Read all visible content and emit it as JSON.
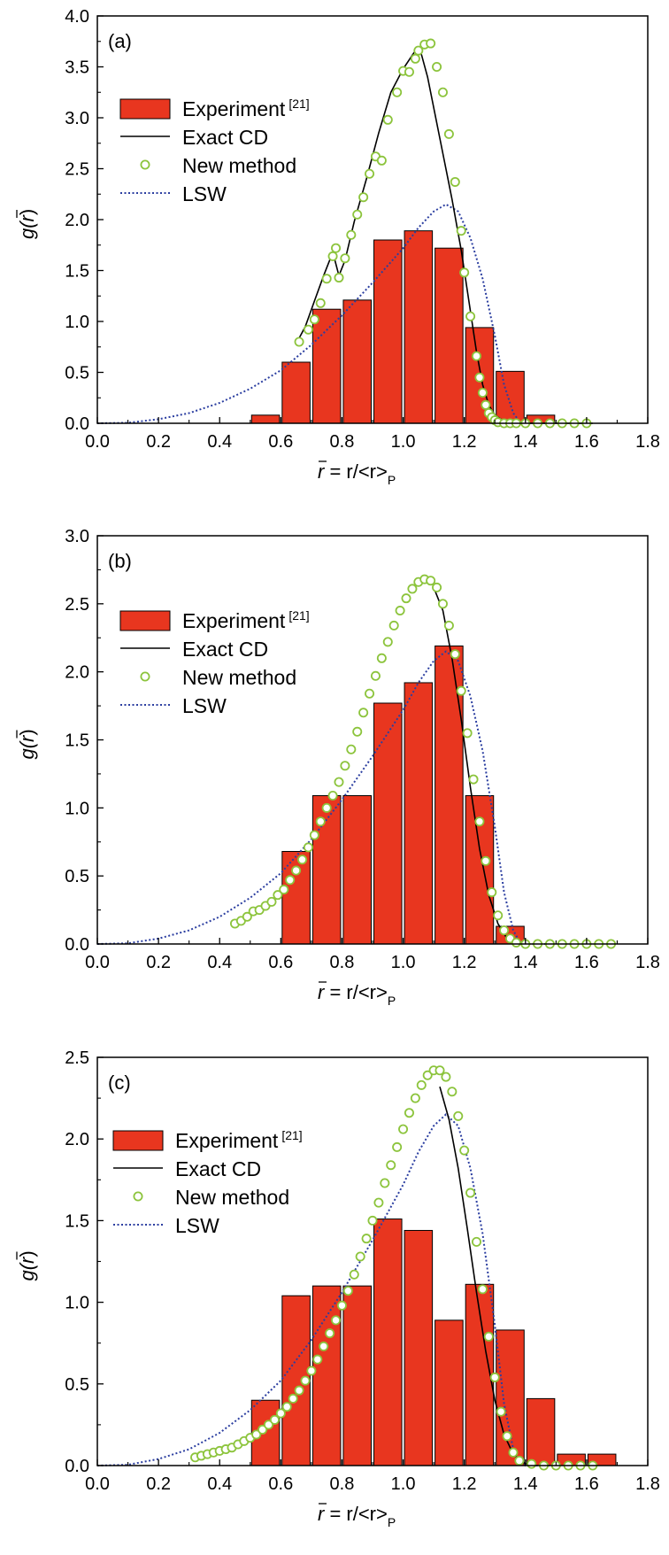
{
  "chart_data": [
    {
      "type": "bar",
      "panel_label": "(a)",
      "xlabel": {
        "bar": "r",
        "rest": " = r/<r>",
        "sub": "P"
      },
      "ylabel": {
        "main": "g(",
        "bar": "r",
        "close": ")"
      },
      "xlim": [
        0.0,
        1.8
      ],
      "ylim": [
        0.0,
        4.0
      ],
      "xticks": [
        0.0,
        0.2,
        0.4,
        0.6,
        0.8,
        1.0,
        1.2,
        1.4,
        1.6,
        1.8
      ],
      "yticks": [
        0.0,
        0.5,
        1.0,
        1.5,
        2.0,
        2.5,
        3.0,
        3.5,
        4.0
      ],
      "grid": false,
      "legend_position": "upper-left",
      "series": [
        {
          "name": "Experiment",
          "ref": "[21]",
          "kind": "bar",
          "color": "#e8361f",
          "bar_width": 0.1,
          "x": [
            0.55,
            0.65,
            0.75,
            0.85,
            0.95,
            1.05,
            1.15,
            1.25,
            1.35,
            1.45
          ],
          "values": [
            0.08,
            0.6,
            1.12,
            1.21,
            1.8,
            1.89,
            1.72,
            0.94,
            0.51,
            0.08
          ]
        },
        {
          "name": "Exact CD",
          "kind": "line",
          "color": "#000000",
          "x": [
            0.65,
            0.68,
            0.71,
            0.74,
            0.77,
            0.79,
            0.81,
            0.84,
            0.88,
            0.92,
            0.96,
            1.0,
            1.04,
            1.06,
            1.08,
            1.12,
            1.16,
            1.19,
            1.22,
            1.24,
            1.26,
            1.28,
            1.3,
            1.33,
            1.36,
            1.42,
            1.52,
            1.62
          ],
          "values": [
            0.78,
            0.95,
            1.2,
            1.45,
            1.68,
            1.45,
            1.6,
            1.98,
            2.4,
            2.85,
            3.25,
            3.48,
            3.66,
            3.62,
            3.4,
            2.8,
            2.2,
            1.7,
            1.1,
            0.7,
            0.38,
            0.18,
            0.08,
            0.02,
            0.0,
            0.0,
            0.0,
            0.0
          ]
        },
        {
          "name": "New method",
          "kind": "scatter",
          "color": "#8cc43c",
          "x": [
            0.66,
            0.69,
            0.71,
            0.73,
            0.75,
            0.77,
            0.78,
            0.79,
            0.81,
            0.83,
            0.85,
            0.87,
            0.89,
            0.91,
            0.93,
            0.95,
            0.98,
            1.0,
            1.02,
            1.04,
            1.05,
            1.07,
            1.09,
            1.11,
            1.13,
            1.15,
            1.17,
            1.19,
            1.2,
            1.22,
            1.24,
            1.25,
            1.26,
            1.27,
            1.28,
            1.29,
            1.3,
            1.31,
            1.33,
            1.35,
            1.37,
            1.4,
            1.44,
            1.48,
            1.52,
            1.56,
            1.6
          ],
          "values": [
            0.8,
            0.92,
            1.02,
            1.18,
            1.42,
            1.64,
            1.72,
            1.43,
            1.62,
            1.85,
            2.05,
            2.22,
            2.45,
            2.62,
            2.58,
            2.98,
            3.25,
            3.46,
            3.45,
            3.58,
            3.66,
            3.72,
            3.73,
            3.5,
            3.25,
            2.84,
            2.37,
            1.89,
            1.48,
            1.05,
            0.66,
            0.45,
            0.3,
            0.18,
            0.1,
            0.06,
            0.03,
            0.01,
            0.0,
            0.0,
            0.0,
            0.0,
            0.0,
            0.0,
            0.0,
            0.0,
            0.0
          ]
        },
        {
          "name": "LSW",
          "kind": "dotted-line",
          "color": "#2b3ea0",
          "x": [
            0.0,
            0.1,
            0.2,
            0.3,
            0.4,
            0.5,
            0.6,
            0.7,
            0.8,
            0.9,
            1.0,
            1.05,
            1.1,
            1.14,
            1.18,
            1.22,
            1.26,
            1.3,
            1.33,
            1.36,
            1.38,
            1.4,
            1.5
          ],
          "values": [
            0.0,
            0.005,
            0.04,
            0.1,
            0.2,
            0.34,
            0.52,
            0.77,
            1.06,
            1.38,
            1.72,
            1.92,
            2.08,
            2.15,
            2.08,
            1.82,
            1.42,
            0.86,
            0.38,
            0.1,
            0.02,
            0.0,
            0.0
          ]
        }
      ]
    },
    {
      "type": "bar",
      "panel_label": "(b)",
      "xlabel": {
        "bar": "r",
        "rest": " = r/<r>",
        "sub": "P"
      },
      "ylabel": {
        "main": "g(",
        "bar": "r",
        "close": ")"
      },
      "xlim": [
        0.0,
        1.8
      ],
      "ylim": [
        0.0,
        3.0
      ],
      "xticks": [
        0.0,
        0.2,
        0.4,
        0.6,
        0.8,
        1.0,
        1.2,
        1.4,
        1.6,
        1.8
      ],
      "yticks": [
        0.0,
        0.5,
        1.0,
        1.5,
        2.0,
        2.5,
        3.0
      ],
      "grid": false,
      "legend_position": "upper-left",
      "series": [
        {
          "name": "Experiment",
          "ref": "[21]",
          "kind": "bar",
          "color": "#e8361f",
          "bar_width": 0.1,
          "x": [
            0.65,
            0.75,
            0.85,
            0.95,
            1.05,
            1.15,
            1.25,
            1.35
          ],
          "values": [
            0.68,
            1.09,
            1.09,
            1.77,
            1.92,
            2.19,
            1.09,
            0.13
          ]
        },
        {
          "name": "Exact CD",
          "kind": "line",
          "color": "#000000",
          "x": [
            1.1,
            1.13,
            1.16,
            1.19,
            1.22,
            1.25,
            1.28,
            1.31,
            1.34,
            1.37,
            1.4
          ],
          "values": [
            2.62,
            2.45,
            2.1,
            1.65,
            1.15,
            0.7,
            0.36,
            0.15,
            0.04,
            0.01,
            0.0
          ]
        },
        {
          "name": "New method",
          "kind": "scatter",
          "color": "#8cc43c",
          "x": [
            0.45,
            0.47,
            0.49,
            0.51,
            0.53,
            0.55,
            0.57,
            0.59,
            0.61,
            0.63,
            0.65,
            0.67,
            0.69,
            0.71,
            0.73,
            0.75,
            0.77,
            0.79,
            0.81,
            0.83,
            0.85,
            0.87,
            0.89,
            0.91,
            0.93,
            0.95,
            0.97,
            0.99,
            1.01,
            1.03,
            1.05,
            1.07,
            1.09,
            1.11,
            1.13,
            1.15,
            1.17,
            1.19,
            1.21,
            1.23,
            1.25,
            1.27,
            1.29,
            1.31,
            1.33,
            1.35,
            1.37,
            1.4,
            1.44,
            1.48,
            1.52,
            1.56,
            1.6,
            1.64,
            1.68
          ],
          "values": [
            0.15,
            0.17,
            0.2,
            0.24,
            0.25,
            0.28,
            0.31,
            0.36,
            0.4,
            0.47,
            0.54,
            0.62,
            0.71,
            0.8,
            0.9,
            1.0,
            1.09,
            1.19,
            1.31,
            1.43,
            1.56,
            1.7,
            1.84,
            1.97,
            2.1,
            2.22,
            2.34,
            2.45,
            2.54,
            2.61,
            2.66,
            2.68,
            2.67,
            2.62,
            2.5,
            2.34,
            2.13,
            1.86,
            1.55,
            1.21,
            0.9,
            0.61,
            0.38,
            0.21,
            0.1,
            0.04,
            0.01,
            0.0,
            0.0,
            0.0,
            0.0,
            0.0,
            0.0,
            0.0,
            0.0
          ]
        },
        {
          "name": "LSW",
          "kind": "dotted-line",
          "color": "#2b3ea0",
          "x": [
            0.0,
            0.1,
            0.2,
            0.3,
            0.4,
            0.5,
            0.6,
            0.7,
            0.8,
            0.9,
            1.0,
            1.05,
            1.1,
            1.14,
            1.18,
            1.22,
            1.26,
            1.3,
            1.33,
            1.36,
            1.38,
            1.4,
            1.5
          ],
          "values": [
            0.0,
            0.005,
            0.04,
            0.1,
            0.2,
            0.34,
            0.52,
            0.77,
            1.06,
            1.38,
            1.72,
            1.92,
            2.08,
            2.15,
            2.08,
            1.82,
            1.42,
            0.86,
            0.38,
            0.1,
            0.02,
            0.0,
            0.0
          ]
        }
      ]
    },
    {
      "type": "bar",
      "panel_label": "(c)",
      "xlabel": {
        "bar": "r",
        "rest": " = r/<r>",
        "sub": "P"
      },
      "ylabel": {
        "main": "g(",
        "bar": "r",
        "close": ")"
      },
      "xlim": [
        0.0,
        1.8
      ],
      "ylim": [
        0.0,
        2.5
      ],
      "xticks": [
        0.0,
        0.2,
        0.4,
        0.6,
        0.8,
        1.0,
        1.2,
        1.4,
        1.6,
        1.8
      ],
      "yticks": [
        0.0,
        0.5,
        1.0,
        1.5,
        2.0,
        2.5
      ],
      "grid": false,
      "legend_position": "upper-left",
      "series": [
        {
          "name": "Experiment",
          "ref": "[21]",
          "kind": "bar",
          "color": "#e8361f",
          "bar_width": 0.1,
          "x": [
            0.55,
            0.65,
            0.75,
            0.85,
            0.95,
            1.05,
            1.15,
            1.25,
            1.35,
            1.45,
            1.55,
            1.65
          ],
          "values": [
            0.4,
            1.04,
            1.1,
            1.1,
            1.51,
            1.44,
            0.89,
            1.11,
            0.83,
            0.41,
            0.07,
            0.07
          ]
        },
        {
          "name": "Exact CD",
          "kind": "line",
          "color": "#000000",
          "x": [
            1.12,
            1.15,
            1.18,
            1.21,
            1.24,
            1.27,
            1.3,
            1.33,
            1.36,
            1.39,
            1.42
          ],
          "values": [
            2.32,
            2.12,
            1.82,
            1.45,
            1.06,
            0.7,
            0.4,
            0.19,
            0.07,
            0.02,
            0.0
          ]
        },
        {
          "name": "New method",
          "kind": "scatter",
          "color": "#8cc43c",
          "x": [
            0.32,
            0.34,
            0.36,
            0.38,
            0.4,
            0.42,
            0.44,
            0.46,
            0.48,
            0.5,
            0.52,
            0.54,
            0.56,
            0.58,
            0.6,
            0.62,
            0.64,
            0.66,
            0.68,
            0.7,
            0.72,
            0.74,
            0.76,
            0.78,
            0.8,
            0.82,
            0.84,
            0.86,
            0.88,
            0.9,
            0.92,
            0.94,
            0.96,
            0.98,
            1.0,
            1.02,
            1.04,
            1.06,
            1.08,
            1.1,
            1.12,
            1.14,
            1.16,
            1.18,
            1.2,
            1.22,
            1.24,
            1.26,
            1.28,
            1.3,
            1.32,
            1.34,
            1.36,
            1.38,
            1.42,
            1.46,
            1.5,
            1.54,
            1.58,
            1.62
          ],
          "values": [
            0.05,
            0.06,
            0.07,
            0.08,
            0.09,
            0.1,
            0.11,
            0.13,
            0.15,
            0.17,
            0.19,
            0.22,
            0.25,
            0.28,
            0.32,
            0.36,
            0.41,
            0.46,
            0.52,
            0.58,
            0.65,
            0.73,
            0.81,
            0.89,
            0.98,
            1.07,
            1.17,
            1.28,
            1.39,
            1.5,
            1.61,
            1.73,
            1.84,
            1.95,
            2.06,
            2.16,
            2.25,
            2.33,
            2.39,
            2.42,
            2.42,
            2.38,
            2.29,
            2.14,
            1.93,
            1.67,
            1.37,
            1.08,
            0.79,
            0.54,
            0.33,
            0.18,
            0.08,
            0.03,
            0.01,
            0.0,
            0.0,
            0.0,
            0.0,
            0.0
          ]
        },
        {
          "name": "LSW",
          "kind": "dotted-line",
          "color": "#2b3ea0",
          "x": [
            0.0,
            0.1,
            0.2,
            0.3,
            0.4,
            0.5,
            0.6,
            0.7,
            0.8,
            0.9,
            1.0,
            1.05,
            1.1,
            1.14,
            1.18,
            1.22,
            1.26,
            1.3,
            1.33,
            1.36,
            1.38,
            1.4,
            1.5
          ],
          "values": [
            0.0,
            0.005,
            0.04,
            0.1,
            0.2,
            0.34,
            0.52,
            0.77,
            1.06,
            1.38,
            1.72,
            1.92,
            2.08,
            2.15,
            2.08,
            1.82,
            1.42,
            0.86,
            0.38,
            0.1,
            0.02,
            0.0,
            0.0
          ]
        }
      ]
    }
  ]
}
